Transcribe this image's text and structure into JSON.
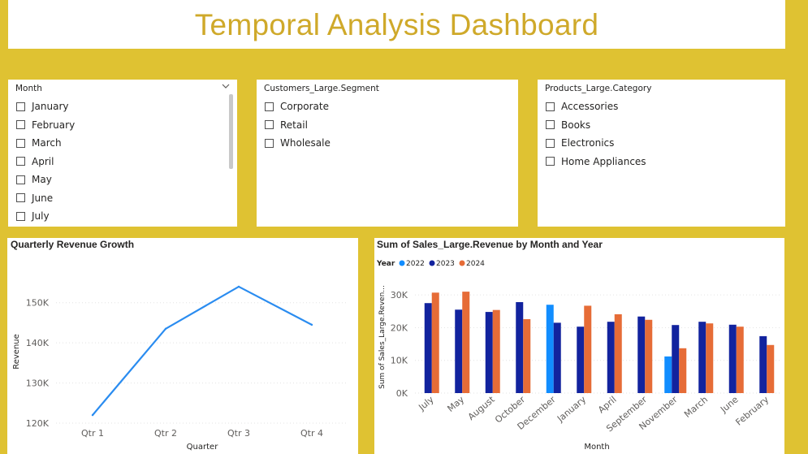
{
  "title": "Temporal Analysis Dashboard",
  "slicers": {
    "month": {
      "header": "Month",
      "items": [
        "January",
        "February",
        "March",
        "April",
        "May",
        "June",
        "July"
      ]
    },
    "segment": {
      "header": "Customers_Large.Segment",
      "items": [
        "Corporate",
        "Retail",
        "Wholesale"
      ]
    },
    "category": {
      "header": "Products_Large.Category",
      "items": [
        "Accessories",
        "Books",
        "Electronics",
        "Home Appliances"
      ]
    }
  },
  "line_chart": {
    "title": "Quarterly Revenue Growth",
    "color": "#2a8cf0"
  },
  "bar_chart": {
    "title": "Sum of Sales_Large.Revenue by Month and Year",
    "legend_title": "Year"
  },
  "chart_data": [
    {
      "type": "line",
      "title": "Quarterly Revenue Growth",
      "xlabel": "Quarter",
      "ylabel": "Revenue",
      "categories": [
        "Qtr 1",
        "Qtr 2",
        "Qtr 3",
        "Qtr 4"
      ],
      "values": [
        122000,
        143500,
        154000,
        144500
      ],
      "ylim": [
        120000,
        155000
      ],
      "yticks": [
        120000,
        130000,
        140000,
        150000
      ],
      "ytick_labels": [
        "120K",
        "130K",
        "140K",
        "150K"
      ],
      "grid": true
    },
    {
      "type": "bar",
      "title": "Sum of Sales_Large.Revenue by Month and Year",
      "xlabel": "Month",
      "ylabel": "Sum of Sales_Large.Reven...",
      "legend_title": "Year",
      "legend_position": "top-left",
      "categories": [
        "July",
        "May",
        "August",
        "October",
        "December",
        "January",
        "April",
        "September",
        "November",
        "March",
        "June",
        "February"
      ],
      "series": [
        {
          "name": "2022",
          "color": "#118dff",
          "values": [
            0,
            0,
            0,
            0,
            27000,
            0,
            0,
            0,
            11200,
            0,
            0,
            0
          ]
        },
        {
          "name": "2023",
          "color": "#12239e",
          "values": [
            27500,
            25500,
            24800,
            27800,
            21500,
            20300,
            21800,
            23400,
            20800,
            21800,
            20900,
            17400
          ]
        },
        {
          "name": "2024",
          "color": "#e66c37",
          "values": [
            30700,
            31000,
            25400,
            22600,
            0,
            26700,
            24100,
            22400,
            13700,
            21300,
            20300,
            14700
          ]
        }
      ],
      "ylim": [
        0,
        35000
      ],
      "yticks": [
        0,
        10000,
        20000,
        30000
      ],
      "ytick_labels": [
        "0K",
        "10K",
        "20K",
        "30K"
      ],
      "grid": true
    }
  ]
}
